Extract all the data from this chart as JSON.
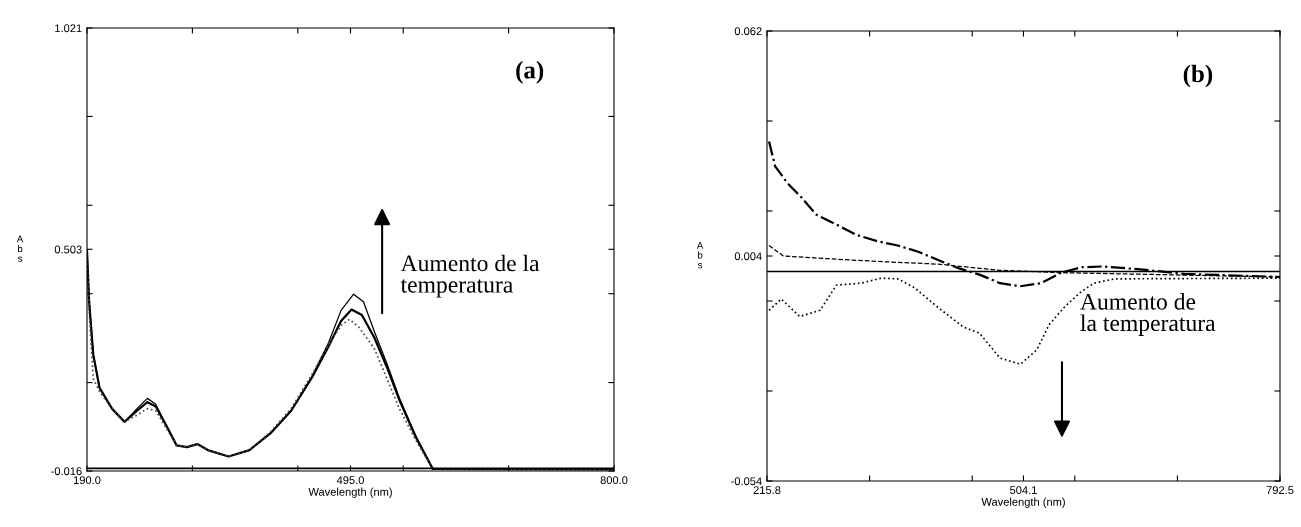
{
  "chart_data": [
    {
      "type": "line",
      "xlabel": "Wavelength (nm)",
      "ylabel": "Abs",
      "xlim": [
        190.0,
        800.0
      ],
      "ylim": [
        -0.016,
        1.021
      ],
      "xticks": [
        {
          "value": 190,
          "label": "190.0"
        },
        {
          "value": 312,
          "label": null
        },
        {
          "value": 434,
          "label": null
        },
        {
          "value": 495,
          "label": "495.0"
        },
        {
          "value": 556,
          "label": null
        },
        {
          "value": 678,
          "label": null
        },
        {
          "value": 800,
          "label": "800.0"
        }
      ],
      "yticks": [
        -0.016,
        {
          "value": 0.191,
          "label": null
        },
        {
          "value": 0.399,
          "label": null
        },
        0.503,
        {
          "value": 0.606,
          "label": null
        },
        {
          "value": 0.814,
          "label": null
        },
        1.021
      ],
      "grid": false,
      "legend": false,
      "annotations": [
        "(a)",
        "Aumento de la temperatura"
      ],
      "ref_lines": [
        {
          "axis": "y",
          "value": -0.01,
          "color": "#000000",
          "line_style": "solid"
        }
      ],
      "series": [
        {
          "color": "#000000",
          "line_style": "solid",
          "x": [
            190,
            192.4,
            197.2,
            204.5,
            218.9,
            233.4,
            247.9,
            259.9,
            269.6,
            281.6,
            293.7,
            305.7,
            317.8,
            329.8,
            353.9,
            378.0,
            402.2,
            426.3,
            450.4,
            469.7,
            484.1,
            496.2,
            508.2,
            522.7,
            537.2,
            551.6,
            570.9,
            590.2,
            800
          ],
          "values": [
            0.5,
            0.383,
            0.257,
            0.179,
            0.13,
            0.099,
            0.125,
            0.145,
            0.135,
            0.091,
            0.044,
            0.04,
            0.047,
            0.033,
            0.018,
            0.033,
            0.072,
            0.125,
            0.203,
            0.276,
            0.335,
            0.362,
            0.349,
            0.296,
            0.227,
            0.15,
            0.062,
            -0.011,
            -0.012
          ]
        },
        {
          "color": "#000000",
          "line_style": "solid",
          "x": [
            190,
            192.4,
            197.2,
            204.5,
            218.9,
            233.4,
            247.9,
            259.9,
            269.6,
            281.6,
            293.7,
            305.7,
            317.8,
            329.8,
            353.9,
            378.0,
            402.2,
            426.3,
            450.4,
            469.7,
            484.1,
            498.6,
            510.0,
            522.7,
            537.2,
            551.6,
            570.9,
            590.2,
            800
          ],
          "values": [
            0.5,
            0.383,
            0.257,
            0.179,
            0.13,
            0.099,
            0.13,
            0.154,
            0.14,
            0.091,
            0.044,
            0.04,
            0.047,
            0.033,
            0.018,
            0.033,
            0.072,
            0.125,
            0.205,
            0.285,
            0.36,
            0.398,
            0.38,
            0.31,
            0.235,
            0.155,
            0.065,
            -0.011,
            -0.012
          ]
        },
        {
          "color": "#444444",
          "line_style": "dotted",
          "x": [
            190,
            192.4,
            197.2,
            204.5,
            218.9,
            233.4,
            247.9,
            259.9,
            269.6,
            281.6,
            293.7,
            305.7,
            317.8,
            329.8,
            353.9,
            378.0,
            402.2,
            426.3,
            450.4,
            469.7,
            484.1,
            493.8,
            505.0,
            522.7,
            537.2,
            551.6,
            570.9,
            590.2,
            800
          ],
          "values": [
            0.5,
            0.36,
            0.2,
            0.17,
            0.13,
            0.099,
            0.115,
            0.13,
            0.125,
            0.085,
            0.044,
            0.04,
            0.047,
            0.033,
            0.018,
            0.033,
            0.075,
            0.13,
            0.21,
            0.28,
            0.325,
            0.339,
            0.32,
            0.27,
            0.2,
            0.13,
            0.055,
            -0.011,
            -0.012
          ]
        }
      ]
    },
    {
      "type": "line",
      "xlabel": "Wavelength (nm)",
      "ylabel": "Abs",
      "xlim": [
        215.8,
        792.5
      ],
      "ylim": [
        -0.054,
        0.062
      ],
      "xticks": [
        215.8,
        {
          "value": 331.1,
          "label": null
        },
        {
          "value": 446.5,
          "label": null
        },
        504.1,
        {
          "value": 561.8,
          "label": null
        },
        {
          "value": 677.2,
          "label": null
        },
        792.5
      ],
      "yticks": [
        -0.054,
        {
          "value": -0.0308,
          "label": null
        },
        {
          "value": -0.0076,
          "label": null
        },
        0.004,
        {
          "value": 0.0156,
          "label": null
        },
        {
          "value": 0.0388,
          "label": null
        },
        0.062
      ],
      "grid": false,
      "legend": false,
      "annotations": [
        "(b)",
        "Aumento de la temperatura"
      ],
      "ref_lines": [
        {
          "axis": "y",
          "value": 0.0,
          "color": "#000000",
          "line_style": "solid"
        }
      ],
      "series": [
        {
          "color": "#000000",
          "line_style": "dashdot",
          "x": [
            218.1,
            225.0,
            238.8,
            254.9,
            271.0,
            293.9,
            316.9,
            339.9,
            362.8,
            385.8,
            408.8,
            431.8,
            454.7,
            477.7,
            500.7,
            523.7,
            546.6,
            569.6,
            592.6,
            638.5,
            684.5,
            792.5
          ],
          "values": [
            0.0335,
            0.0271,
            0.0228,
            0.019,
            0.0147,
            0.0121,
            0.0094,
            0.0078,
            0.0067,
            0.0051,
            0.0029,
            0.0008,
            -0.0008,
            -0.003,
            -0.0038,
            -0.003,
            -0.0003,
            0.0011,
            0.0013,
            0.0005,
            -0.0006,
            -0.0014
          ]
        },
        {
          "color": "#000000",
          "line_style": "dashed",
          "x": [
            218.1,
            234.2,
            284.7,
            339.9,
            408.8,
            477.7,
            546.6,
            792.5
          ],
          "values": [
            0.0067,
            0.004,
            0.0033,
            0.0026,
            0.0019,
            0.0003,
            -0.0003,
            -0.0014
          ]
        },
        {
          "color": "#000000",
          "line_style": "dotted",
          "x": [
            218.1,
            231.9,
            252.6,
            275.5,
            293.9,
            321.5,
            344.5,
            362.8,
            381.2,
            408.8,
            436.4,
            454.7,
            477.7,
            500.7,
            519.1,
            532.9,
            551.2,
            569.6,
            583.4,
            606.4,
            792.5
          ],
          "values": [
            -0.01,
            -0.0071,
            -0.0116,
            -0.01,
            -0.0035,
            -0.003,
            -0.0017,
            -0.0019,
            -0.0041,
            -0.0094,
            -0.0143,
            -0.0159,
            -0.0223,
            -0.0239,
            -0.0202,
            -0.0137,
            -0.0089,
            -0.0051,
            -0.003,
            -0.0019,
            -0.0017
          ]
        }
      ]
    }
  ]
}
